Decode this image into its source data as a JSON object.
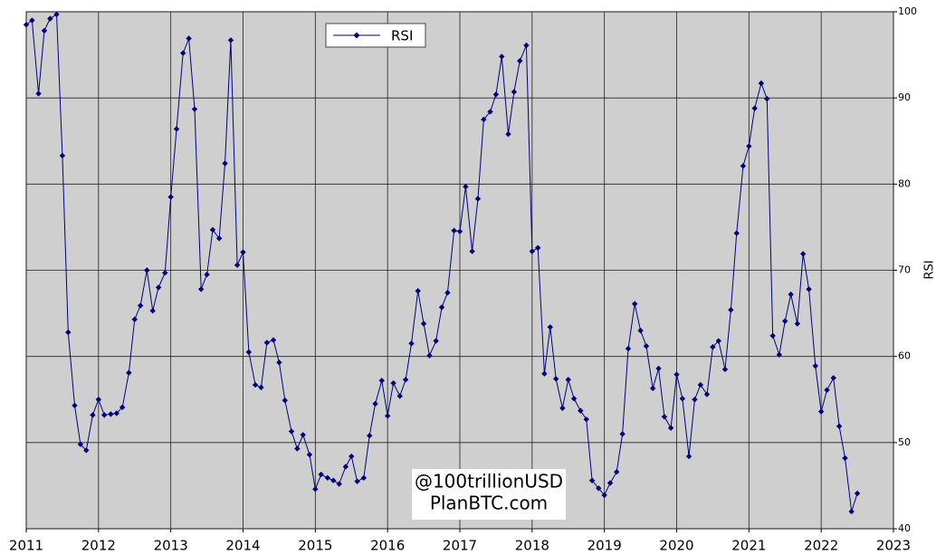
{
  "chart_data": {
    "type": "line",
    "y_label": "RSI",
    "annotations": [
      "@100trillionUSD",
      "PlanBTC.com"
    ],
    "x": [
      2011.0,
      2011.08,
      2011.17,
      2011.25,
      2011.33,
      2011.42,
      2011.5,
      2011.58,
      2011.67,
      2011.75,
      2011.83,
      2011.92,
      2012.0,
      2012.08,
      2012.17,
      2012.25,
      2012.33,
      2012.42,
      2012.5,
      2012.58,
      2012.67,
      2012.75,
      2012.83,
      2012.92,
      2013.0,
      2013.08,
      2013.17,
      2013.25,
      2013.33,
      2013.42,
      2013.5,
      2013.58,
      2013.67,
      2013.75,
      2013.83,
      2013.92,
      2014.0,
      2014.08,
      2014.17,
      2014.25,
      2014.33,
      2014.42,
      2014.5,
      2014.58,
      2014.67,
      2014.75,
      2014.83,
      2014.92,
      2015.0,
      2015.08,
      2015.17,
      2015.25,
      2015.33,
      2015.42,
      2015.5,
      2015.58,
      2015.67,
      2015.75,
      2015.83,
      2015.92,
      2016.0,
      2016.08,
      2016.17,
      2016.25,
      2016.33,
      2016.42,
      2016.5,
      2016.58,
      2016.67,
      2016.75,
      2016.83,
      2016.92,
      2017.0,
      2017.08,
      2017.17,
      2017.25,
      2017.33,
      2017.42,
      2017.5,
      2017.58,
      2017.67,
      2017.75,
      2017.83,
      2017.92,
      2018.0,
      2018.08,
      2018.17,
      2018.25,
      2018.33,
      2018.42,
      2018.5,
      2018.58,
      2018.67,
      2018.75,
      2018.83,
      2018.92,
      2019.0,
      2019.08,
      2019.17,
      2019.25,
      2019.33,
      2019.42,
      2019.5,
      2019.58,
      2019.67,
      2019.75,
      2019.83,
      2019.92,
      2020.0,
      2020.08,
      2020.17,
      2020.25,
      2020.33,
      2020.42,
      2020.5,
      2020.58,
      2020.67,
      2020.75,
      2020.83,
      2020.92,
      2021.0,
      2021.08,
      2021.17,
      2021.25,
      2021.33,
      2021.42,
      2021.5,
      2021.58,
      2021.67,
      2021.75,
      2021.83,
      2021.92,
      2022.0,
      2022.08,
      2022.17,
      2022.25,
      2022.33,
      2022.42,
      2022.5
    ],
    "series": [
      {
        "name": "RSI",
        "color": "#000080",
        "values": [
          98.5,
          99,
          90.5,
          97.8,
          99.2,
          99.7,
          83.3,
          62.8,
          54.3,
          49.8,
          49.1,
          53.2,
          55,
          53.2,
          53.3,
          53.4,
          54.1,
          58.1,
          64.3,
          65.9,
          70,
          65.3,
          68,
          69.7,
          78.5,
          86.4,
          95.2,
          96.9,
          88.7,
          67.8,
          69.5,
          74.7,
          73.7,
          82.4,
          96.7,
          70.6,
          72.1,
          60.5,
          56.7,
          56.4,
          61.6,
          61.9,
          59.3,
          54.9,
          51.3,
          49.3,
          50.9,
          48.6,
          44.6,
          46.3,
          45.9,
          45.6,
          45.2,
          47.2,
          48.4,
          45.5,
          45.9,
          50.8,
          54.5,
          57.2,
          53.1,
          56.9,
          55.4,
          57.3,
          61.5,
          67.6,
          63.8,
          60.1,
          61.8,
          65.7,
          67.4,
          74.6,
          74.5,
          79.7,
          72.2,
          78.3,
          87.5,
          88.4,
          90.4,
          94.8,
          85.8,
          90.7,
          94.3,
          96.1,
          72.2,
          72.6,
          58,
          63.4,
          57.4,
          54,
          57.3,
          55.1,
          53.7,
          52.7,
          45.6,
          44.7,
          43.9,
          45.3,
          46.6,
          51,
          60.9,
          66.1,
          63,
          61.2,
          56.3,
          58.6,
          53,
          51.7,
          57.9,
          55.1,
          48.4,
          55,
          56.7,
          55.6,
          61.1,
          61.8,
          58.5,
          65.4,
          74.3,
          82.1,
          84.4,
          88.8,
          91.7,
          89.9,
          62.4,
          60.2,
          64.1,
          67.2,
          63.8,
          71.9,
          67.8,
          58.9,
          53.6,
          56.1,
          57.5,
          51.9,
          48.2,
          42,
          44.1
        ]
      }
    ],
    "xlim": [
      2011,
      2023
    ],
    "xticks": [
      2011,
      2012,
      2013,
      2014,
      2015,
      2016,
      2017,
      2018,
      2019,
      2020,
      2021,
      2022,
      2023
    ],
    "ylim": [
      40,
      100
    ],
    "yticks": [
      40,
      50,
      60,
      70,
      80,
      90,
      100
    ],
    "grid": true,
    "legend": "top"
  }
}
